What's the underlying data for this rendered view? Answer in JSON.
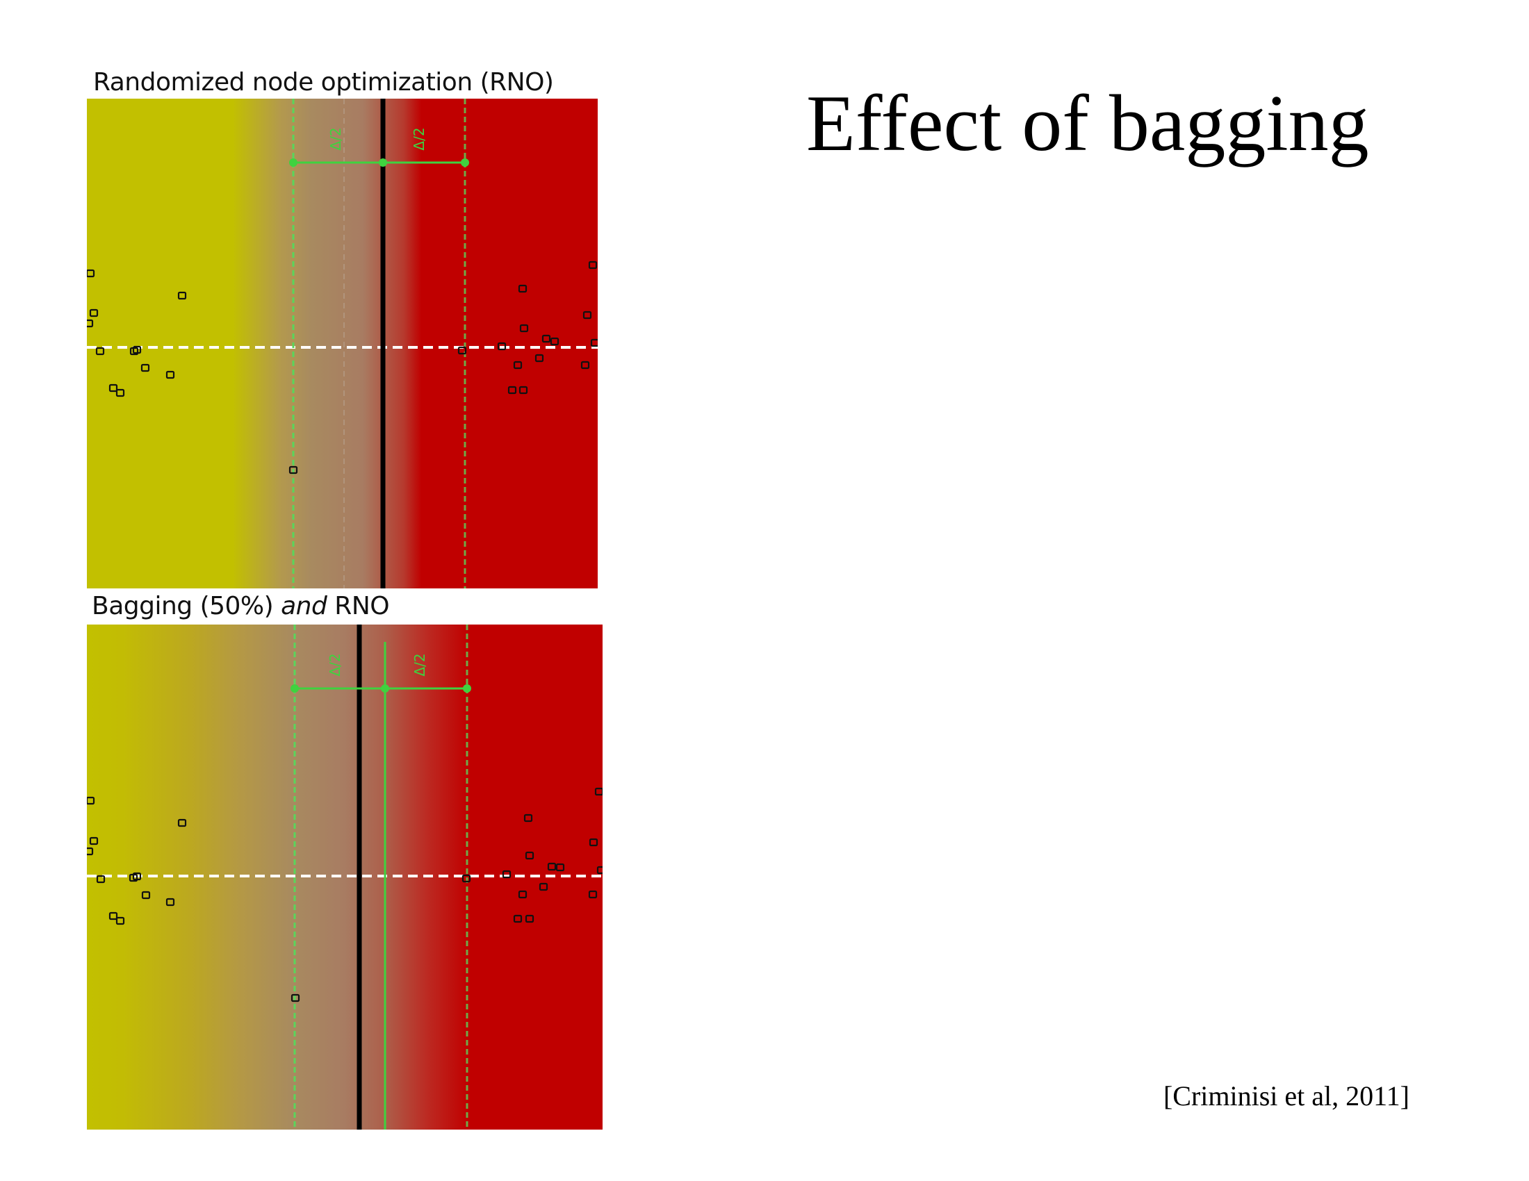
{
  "slide": {
    "title": "Effect of bagging",
    "citation": "[Criminisi et al, 2011]"
  },
  "panels": [
    {
      "id": "rno",
      "label": "Randomized node optimization (RNO)",
      "label_parts": [],
      "delta_label": "Δ/2"
    },
    {
      "id": "bagging",
      "label": "",
      "label_parts": [
        {
          "text": "Bagging (50%) ",
          "italic": false
        },
        {
          "text": "and",
          "italic": true
        },
        {
          "text": " RNO",
          "italic": false
        }
      ],
      "delta_label": "Δ/2"
    }
  ],
  "colors": {
    "class_yellow": "#c2c000",
    "class_red": "#c00000",
    "transition_brown": "#a88a60",
    "split_line": "#000000",
    "range_green": "#3fd23f",
    "dashed_white": "#ffffff"
  }
}
